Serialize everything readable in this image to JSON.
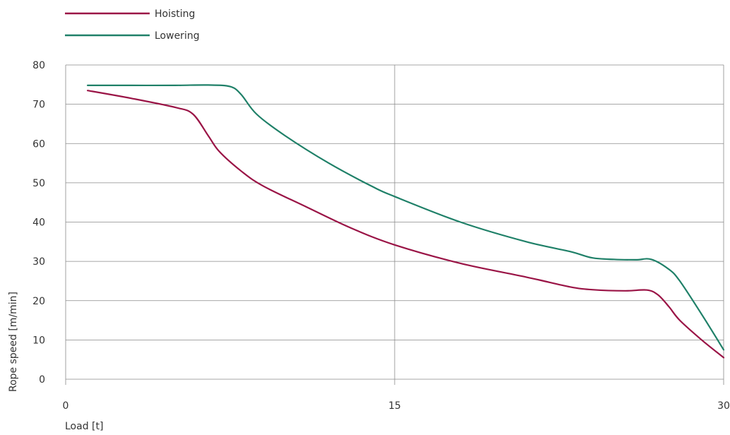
{
  "chart_data": {
    "type": "line",
    "title": "",
    "xlabel": "Load [t]",
    "ylabel": "Rope speed [m/min]",
    "xlim": [
      0,
      30
    ],
    "ylim": [
      0,
      80
    ],
    "x_ticks": [
      "0",
      "15",
      "30"
    ],
    "y_ticks": [
      "0",
      "10",
      "20",
      "30",
      "40",
      "50",
      "60",
      "70",
      "80"
    ],
    "grid": true,
    "legend_position": "top-left",
    "series": [
      {
        "name": "Hoisting",
        "color": "#9a1446",
        "points": [
          [
            1,
            73.5
          ],
          [
            3,
            71.5
          ],
          [
            5,
            69.2
          ],
          [
            5.8,
            67.5
          ],
          [
            6.5,
            62
          ],
          [
            7,
            58
          ],
          [
            8,
            53
          ],
          [
            9,
            49.2
          ],
          [
            11,
            43.8
          ],
          [
            13,
            38.5
          ],
          [
            15,
            34.2
          ],
          [
            18,
            29.5
          ],
          [
            21,
            26
          ],
          [
            23,
            23.5
          ],
          [
            24,
            22.8
          ],
          [
            25.5,
            22.5
          ],
          [
            26.5,
            22.7
          ],
          [
            27,
            21.5
          ],
          [
            27.5,
            18.5
          ],
          [
            28,
            15
          ],
          [
            29,
            10
          ],
          [
            30,
            5.5
          ]
        ]
      },
      {
        "name": "Lowering",
        "color": "#1f8068",
        "points": [
          [
            1,
            74.8
          ],
          [
            3,
            74.8
          ],
          [
            5,
            74.8
          ],
          [
            6.5,
            74.9
          ],
          [
            7.5,
            74.5
          ],
          [
            8,
            72.5
          ],
          [
            8.7,
            67.5
          ],
          [
            10,
            62
          ],
          [
            12,
            55
          ],
          [
            14,
            49
          ],
          [
            15,
            46.5
          ],
          [
            18,
            40
          ],
          [
            21,
            35
          ],
          [
            23,
            32.5
          ],
          [
            24,
            30.9
          ],
          [
            25,
            30.5
          ],
          [
            26,
            30.4
          ],
          [
            26.7,
            30.5
          ],
          [
            27.5,
            28
          ],
          [
            28,
            25
          ],
          [
            29,
            16.5
          ],
          [
            30,
            7.5
          ]
        ]
      }
    ]
  }
}
